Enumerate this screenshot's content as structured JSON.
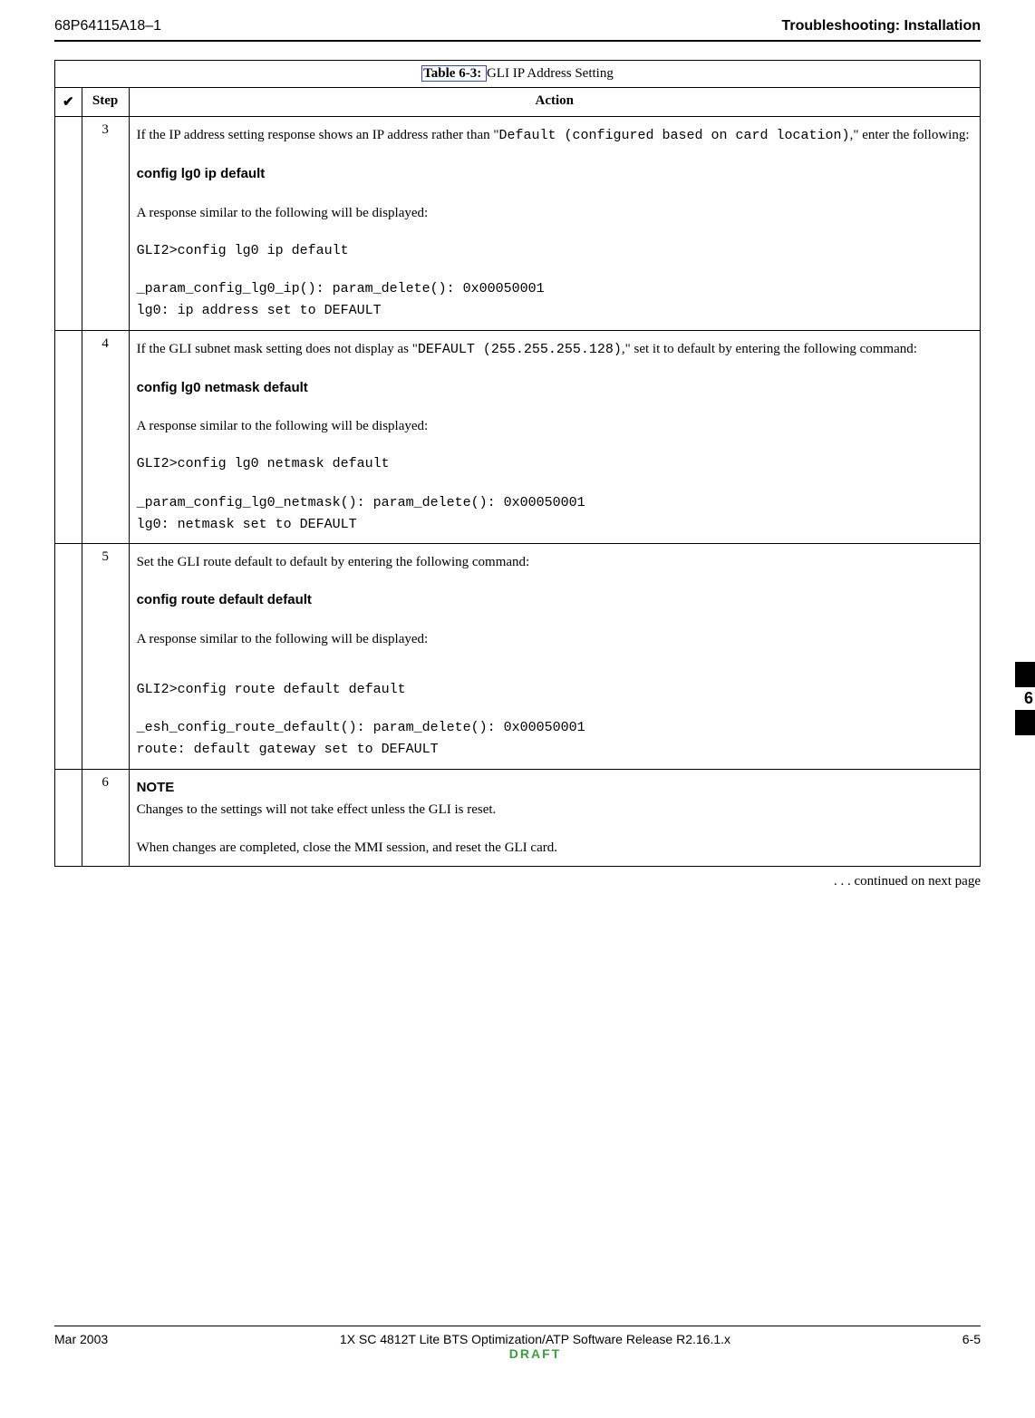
{
  "header": {
    "doc_id": "68P64115A18–1",
    "title": "Troubleshooting: Installation"
  },
  "table": {
    "caption_label": "Table 6-3:",
    "caption_text": " GLI IP Address Setting",
    "columns": {
      "check": "✔",
      "step": "Step",
      "action": "Action"
    },
    "rows": [
      {
        "step": "3",
        "intro_a": "If the IP address setting response shows an IP address rather than \"",
        "intro_mono": "Default (configured based on card location)",
        "intro_b": ",\" enter the following:",
        "cmd": "config lg0 ip default",
        "resp_intro": "A response similar to the following will be displayed:",
        "out1": "GLI2>config lg0 ip default",
        "out2": "_param_config_lg0_ip(): param_delete(): 0x00050001",
        "out3": "lg0: ip address set to DEFAULT"
      },
      {
        "step": "4",
        "intro_a": "If the GLI subnet mask setting does not display as \"",
        "intro_mono": "DEFAULT (255.255.255.128)",
        "intro_b": ",\" set it to default by entering the following command:",
        "cmd": "config lg0 netmask default",
        "resp_intro": "A response similar to the following will be displayed:",
        "out1": "GLI2>config lg0 netmask default",
        "out2": "_param_config_lg0_netmask(): param_delete(): 0x00050001",
        "out3": "lg0: netmask set to DEFAULT"
      },
      {
        "step": "5",
        "intro": "Set the GLI route default to default by entering the following command:",
        "cmd": "config route default default",
        "resp_intro": "A response similar to the following will be displayed:",
        "out1": "GLI2>config route default default",
        "out2": "_esh_config_route_default(): param_delete(): 0x00050001",
        "out3": "route: default gateway set to DEFAULT"
      },
      {
        "step": "6",
        "note_label": "NOTE",
        "note1": "Changes to the settings will not take effect unless the GLI is reset.",
        "note2": "When changes are completed, close the MMI session, and reset the GLI card."
      }
    ]
  },
  "continued": ". . . continued on next page",
  "side_tab": "6",
  "footer": {
    "left": "Mar 2003",
    "center": "1X SC 4812T Lite BTS Optimization/ATP Software Release R2.16.1.x",
    "draft": "DRAFT",
    "right": "6-5"
  }
}
